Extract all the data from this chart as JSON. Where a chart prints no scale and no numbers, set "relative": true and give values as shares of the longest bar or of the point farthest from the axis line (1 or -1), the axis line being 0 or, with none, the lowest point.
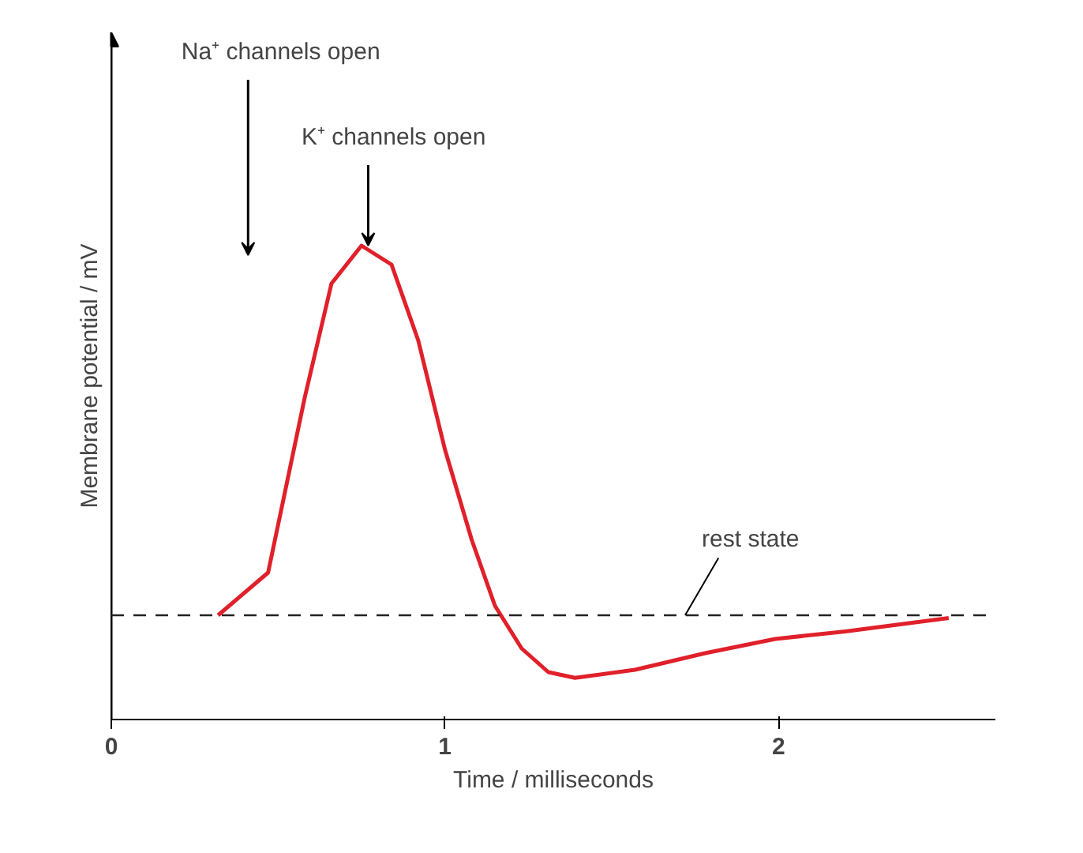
{
  "chart_data": {
    "type": "line",
    "relative": true,
    "xlabel": "Time / milliseconds",
    "ylabel": "Membrane potential / mV",
    "xlim": [
      0,
      2.65
    ],
    "xticks": [
      0,
      1,
      2
    ],
    "grid": false,
    "series": [
      {
        "color": "#e0202a",
        "x": [
          0.32,
          0.47,
          0.58,
          0.66,
          0.75,
          0.84,
          0.92,
          1.0,
          1.08,
          1.15,
          1.23,
          1.31,
          1.39,
          1.57,
          1.78,
          1.99,
          2.2,
          2.51
        ],
        "values": [
          0.22,
          0.31,
          0.68,
          0.92,
          1.0,
          0.96,
          0.8,
          0.57,
          0.38,
          0.24,
          0.15,
          0.1,
          0.088,
          0.105,
          0.14,
          0.17,
          0.186,
          0.214
        ]
      }
    ],
    "ref_lines": [
      {
        "axis": "y",
        "value": 0.22,
        "line_style": "dashed",
        "color": "#222222"
      }
    ],
    "annotations": [
      "Na⁺ channels open",
      {
        "text": "K⁺ channels open",
        "x": 0.77,
        "y": 1.0
      },
      {
        "text": "rest state",
        "x": 1.72,
        "y": 0.22
      }
    ]
  }
}
